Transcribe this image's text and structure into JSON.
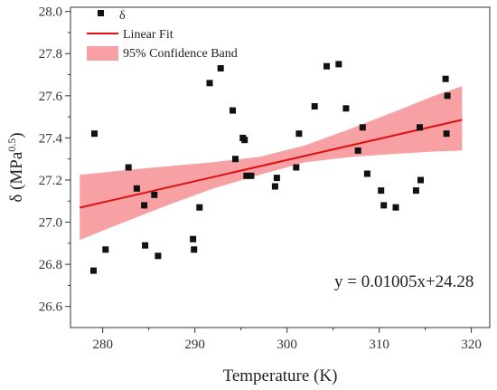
{
  "chart_data": {
    "type": "scatter",
    "xlabel": "Temperature (K)",
    "ylabel": "δ (MPa",
    "ylabel_sup": "0.5",
    "ylabel_close": ")",
    "xlim": [
      276.5,
      322
    ],
    "ylim": [
      26.5,
      28.02
    ],
    "xticks": [
      280,
      290,
      300,
      310,
      320
    ],
    "yticks": [
      26.6,
      26.8,
      27.0,
      27.2,
      27.4,
      27.6,
      27.8,
      28.0
    ],
    "xtick_labels": [
      "280",
      "290",
      "300",
      "310",
      "320"
    ],
    "ytick_labels": [
      "26.6",
      "26.8",
      "27.0",
      "27.2",
      "27.4",
      "27.6",
      "27.8",
      "28.0"
    ],
    "grid": false,
    "legend_position": "top-left",
    "legend": {
      "points": "δ",
      "fit": "Linear Fit",
      "band": "95% Confidence Band"
    },
    "annotation": "y = 0.01005x+24.28",
    "colors": {
      "points": "#111111",
      "fit": "#e01010",
      "band": "#f7a1a4"
    },
    "series": [
      {
        "name": "δ",
        "kind": "scatter",
        "points": [
          [
            279.0,
            26.77
          ],
          [
            279.1,
            27.42
          ],
          [
            280.3,
            26.87
          ],
          [
            282.8,
            27.26
          ],
          [
            283.7,
            27.16
          ],
          [
            284.5,
            27.08
          ],
          [
            284.6,
            26.89
          ],
          [
            285.6,
            27.13
          ],
          [
            286.0,
            26.84
          ],
          [
            289.8,
            26.92
          ],
          [
            289.9,
            26.87
          ],
          [
            290.5,
            27.07
          ],
          [
            291.6,
            27.66
          ],
          [
            292.8,
            27.73
          ],
          [
            294.1,
            27.53
          ],
          [
            294.4,
            27.3
          ],
          [
            295.2,
            27.4
          ],
          [
            295.4,
            27.39
          ],
          [
            295.6,
            27.22
          ],
          [
            296.1,
            27.22
          ],
          [
            298.7,
            27.17
          ],
          [
            298.9,
            27.21
          ],
          [
            301.0,
            27.26
          ],
          [
            301.3,
            27.42
          ],
          [
            303.0,
            27.55
          ],
          [
            304.3,
            27.74
          ],
          [
            305.6,
            27.75
          ],
          [
            306.4,
            27.54
          ],
          [
            307.7,
            27.34
          ],
          [
            308.2,
            27.45
          ],
          [
            308.7,
            27.23
          ],
          [
            310.2,
            27.15
          ],
          [
            310.5,
            27.08
          ],
          [
            311.8,
            27.07
          ],
          [
            314.0,
            27.15
          ],
          [
            314.4,
            27.45
          ],
          [
            314.5,
            27.2
          ],
          [
            317.2,
            27.68
          ],
          [
            317.3,
            27.42
          ],
          [
            317.4,
            27.6
          ]
        ]
      },
      {
        "name": "Linear Fit",
        "kind": "line",
        "slope": 0.01005,
        "intercept": 24.28,
        "x_range": [
          277.5,
          319.0
        ]
      },
      {
        "name": "95% Confidence Band",
        "kind": "band",
        "x": [
          277.5,
          282.0,
          287.0,
          292.0,
          297.0,
          302.0,
          307.0,
          312.0,
          316.0,
          319.0
        ],
        "lower": [
          26.915,
          26.995,
          27.08,
          27.16,
          27.225,
          27.285,
          27.31,
          27.325,
          27.335,
          27.34
        ],
        "upper": [
          27.225,
          27.245,
          27.265,
          27.285,
          27.31,
          27.365,
          27.445,
          27.53,
          27.6,
          27.645
        ]
      }
    ]
  }
}
